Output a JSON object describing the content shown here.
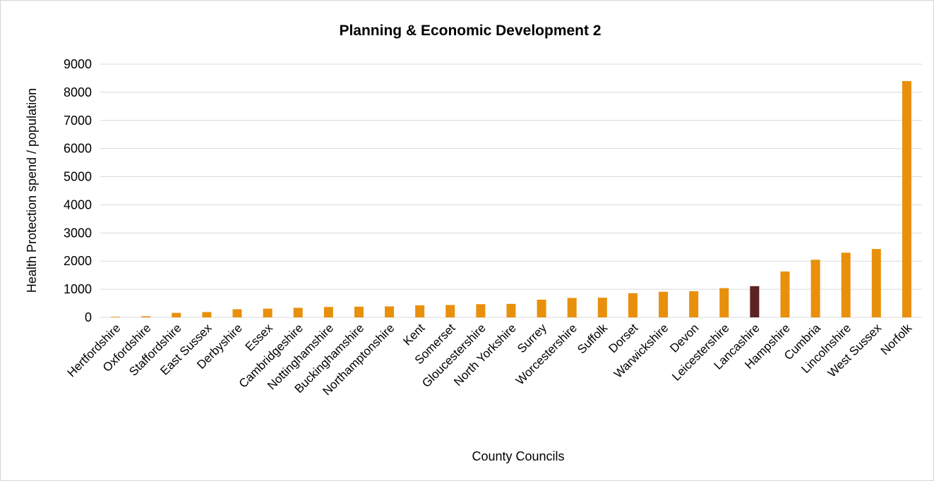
{
  "chart_data": {
    "type": "bar",
    "title": "Planning & Economic Development 2",
    "xlabel": "County Councils",
    "ylabel": "Health Protection spend / population",
    "ylim": [
      0,
      9000
    ],
    "yticks": [
      0,
      1000,
      2000,
      3000,
      4000,
      5000,
      6000,
      7000,
      8000,
      9000
    ],
    "grid": true,
    "legend": "none",
    "colors": {
      "default": "#E8900C",
      "highlight": "#5C2322"
    },
    "highlight": "Lancashire",
    "categories": [
      "Hertfordshire",
      "Oxfordshire",
      "Staffordshire",
      "East Sussex",
      "Derbyshire",
      "Essex",
      "Cambridgeshire",
      "Nottinghamshire",
      "Buckinghamshire",
      "Northamptonshire",
      "Kent",
      "Somerset",
      "Gloucestershire",
      "North Yorkshire",
      "Surrey",
      "Worcestershire",
      "Suffolk",
      "Dorset",
      "Warwickshire",
      "Devon",
      "Leicestershire",
      "Lancashire",
      "Hampshire",
      "Cumbria",
      "Lincolnshire",
      "West Sussex",
      "Norfolk"
    ],
    "values": [
      20,
      40,
      160,
      190,
      290,
      310,
      340,
      370,
      380,
      390,
      430,
      440,
      470,
      480,
      630,
      690,
      700,
      860,
      910,
      930,
      1040,
      1110,
      1630,
      2050,
      2300,
      2430,
      8400
    ]
  }
}
